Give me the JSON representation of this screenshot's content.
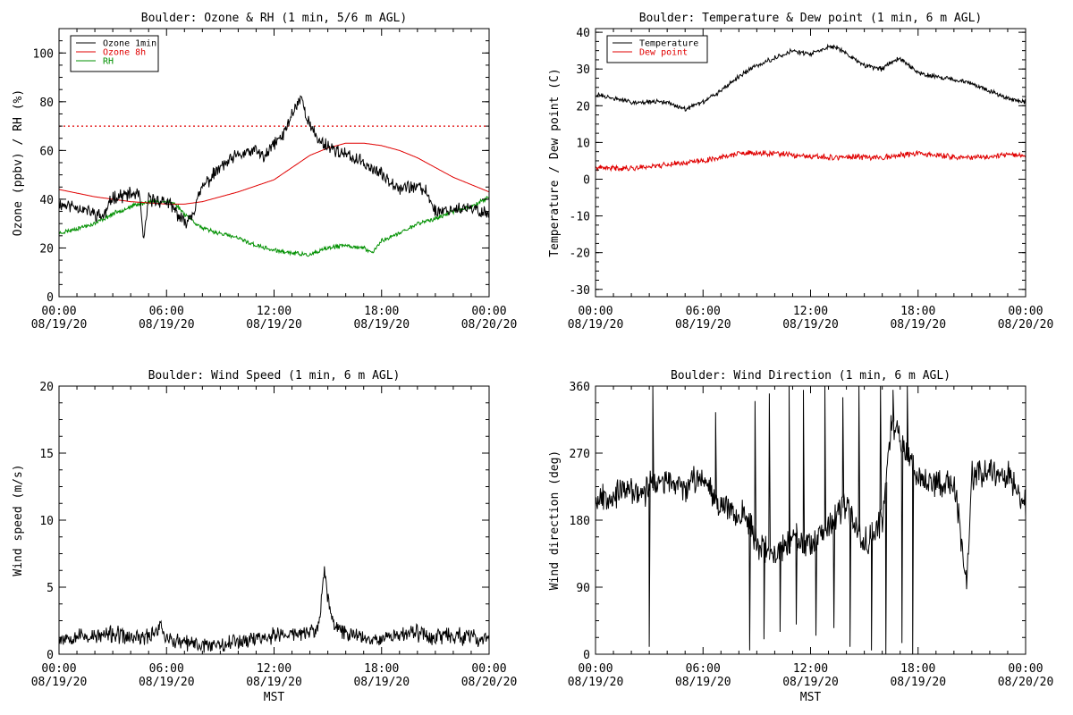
{
  "chart_data": [
    {
      "type": "line",
      "title": "Boulder: Ozone & RH (1 min, 5/6 m AGL)",
      "ylabel": "Ozone (ppbv) / RH (%)",
      "xlabel": "",
      "ylim": [
        0,
        110
      ],
      "yticks": [
        0,
        20,
        40,
        60,
        80,
        100
      ],
      "xlim": [
        0,
        24
      ],
      "xticks": [
        0,
        6,
        12,
        18,
        24
      ],
      "xtick_labels": [
        [
          "00:00",
          "08/19/20"
        ],
        [
          "06:00",
          "08/19/20"
        ],
        [
          "12:00",
          "08/19/20"
        ],
        [
          "18:00",
          "08/19/20"
        ],
        [
          "00:00",
          "08/20/20"
        ]
      ],
      "legend": "top-left",
      "grid": false,
      "reference_lines": [
        {
          "y": 70,
          "color": "#e00000",
          "style": "dotted"
        }
      ],
      "series": [
        {
          "name": "Ozone 1min",
          "color": "#000000",
          "noise": 2.2,
          "noise_seed": 11,
          "x": [
            0,
            1,
            2,
            2.5,
            3,
            4,
            4.5,
            4.7,
            5,
            6,
            6.5,
            7,
            7.5,
            8,
            9,
            10,
            11,
            11.5,
            12,
            12.5,
            13,
            13.5,
            14,
            14.5,
            15,
            16,
            17,
            18,
            19,
            20,
            20.5,
            21,
            22,
            23,
            24
          ],
          "y": [
            38,
            37,
            34,
            33,
            41,
            42,
            42,
            22,
            40,
            39,
            35,
            30,
            35,
            45,
            53,
            58,
            60,
            57,
            63,
            66,
            75,
            82,
            70,
            64,
            62,
            58,
            55,
            50,
            45,
            45,
            43,
            35,
            36,
            36,
            34
          ]
        },
        {
          "name": "Ozone 8h",
          "color": "#e00000",
          "noise": 0,
          "noise_seed": 0,
          "x": [
            0,
            2,
            4,
            6,
            7,
            8,
            10,
            12,
            13,
            14,
            15,
            16,
            17,
            18,
            19,
            20,
            21,
            22,
            23,
            24
          ],
          "y": [
            44,
            41,
            39,
            38,
            38,
            39,
            43,
            48,
            53,
            58,
            61,
            63,
            63,
            62,
            60,
            57,
            53,
            49,
            46,
            43
          ]
        },
        {
          "name": "RH",
          "color": "#009000",
          "noise": 0.7,
          "noise_seed": 23,
          "x": [
            0,
            1,
            2,
            3,
            4,
            5,
            6,
            6.5,
            7,
            8,
            9,
            10,
            11,
            12,
            13,
            14,
            15,
            16,
            17,
            17.5,
            18,
            19,
            20,
            21,
            22,
            23,
            24
          ],
          "y": [
            26,
            28,
            30,
            34,
            37,
            39,
            39,
            38,
            34,
            28,
            26,
            24,
            21,
            19,
            18,
            17,
            20,
            21,
            20,
            18,
            23,
            26,
            30,
            32,
            35,
            37,
            41
          ]
        }
      ]
    },
    {
      "type": "line",
      "title": "Boulder: Temperature & Dew point (1 min, 6 m AGL)",
      "ylabel": "Temperature / Dew point (C)",
      "xlabel": "",
      "ylim": [
        -32,
        41
      ],
      "yticks": [
        -30,
        -20,
        -10,
        0,
        10,
        20,
        30,
        40
      ],
      "xlim": [
        0,
        24
      ],
      "xticks": [
        0,
        6,
        12,
        18,
        24
      ],
      "xtick_labels": [
        [
          "00:00",
          "08/19/20"
        ],
        [
          "06:00",
          "08/19/20"
        ],
        [
          "12:00",
          "08/19/20"
        ],
        [
          "18:00",
          "08/19/20"
        ],
        [
          "00:00",
          "08/20/20"
        ]
      ],
      "legend": "top-left",
      "grid": false,
      "reference_lines": [],
      "series": [
        {
          "name": "Temperature",
          "color": "#000000",
          "noise": 0.5,
          "noise_seed": 31,
          "x": [
            0,
            1,
            2,
            3,
            4,
            5,
            6,
            7,
            8,
            9,
            10,
            11,
            12,
            13,
            13.5,
            14,
            15,
            16,
            16.5,
            17,
            18,
            19,
            20,
            21,
            22,
            23,
            24
          ],
          "y": [
            23,
            22,
            21,
            21,
            21,
            19,
            21,
            24,
            28,
            31,
            33,
            35,
            34,
            36,
            36,
            34,
            31,
            30,
            32,
            33,
            29,
            28,
            27,
            26,
            24,
            22,
            21
          ]
        },
        {
          "name": "Dew point",
          "color": "#e00000",
          "noise": 0.6,
          "noise_seed": 41,
          "x": [
            0,
            2,
            4,
            6,
            7,
            8,
            10,
            12,
            14,
            16,
            18,
            20,
            22,
            23,
            24
          ],
          "y": [
            3,
            3,
            4,
            5,
            6,
            7,
            7,
            6,
            6,
            6,
            7,
            6,
            6,
            7,
            6
          ]
        }
      ]
    },
    {
      "type": "line",
      "title": "Boulder: Wind Speed (1 min, 6 m AGL)",
      "ylabel": "Wind speed (m/s)",
      "xlabel": "MST",
      "ylim": [
        0,
        20
      ],
      "yticks": [
        0,
        5,
        10,
        15,
        20
      ],
      "xlim": [
        0,
        24
      ],
      "xticks": [
        0,
        6,
        12,
        18,
        24
      ],
      "xtick_labels": [
        [
          "00:00",
          "08/19/20"
        ],
        [
          "06:00",
          "08/19/20"
        ],
        [
          "12:00",
          "08/19/20"
        ],
        [
          "18:00",
          "08/19/20"
        ],
        [
          "00:00",
          "08/20/20"
        ]
      ],
      "legend": "none",
      "grid": false,
      "reference_lines": [],
      "series": [
        {
          "name": "",
          "color": "#000000",
          "noise": 0.5,
          "noise_seed": 53,
          "x": [
            0,
            1,
            2,
            3,
            4,
            5,
            5.7,
            6,
            7,
            8,
            9,
            10,
            11,
            12,
            13,
            14,
            14.5,
            14.8,
            15,
            15.3,
            16,
            17,
            18,
            19,
            20,
            21,
            22,
            23,
            24
          ],
          "y": [
            1.2,
            1.4,
            1.3,
            1.5,
            1.2,
            1.3,
            2.2,
            1.1,
            0.8,
            0.7,
            0.8,
            1.0,
            1.2,
            1.4,
            1.5,
            1.6,
            2.0,
            6.5,
            4.0,
            2.2,
            1.6,
            1.3,
            1.2,
            1.5,
            1.6,
            1.3,
            1.4,
            1.2,
            1.1
          ]
        }
      ]
    },
    {
      "type": "line",
      "title": "Boulder: Wind Direction (1 min, 6 m AGL)",
      "ylabel": "Wind direction (deg)",
      "xlabel": "MST",
      "ylim": [
        0,
        360
      ],
      "yticks": [
        0,
        90,
        180,
        270,
        360
      ],
      "xlim": [
        0,
        24
      ],
      "xticks": [
        0,
        6,
        12,
        18,
        24
      ],
      "xtick_labels": [
        [
          "00:00",
          "08/19/20"
        ],
        [
          "06:00",
          "08/19/20"
        ],
        [
          "12:00",
          "08/19/20"
        ],
        [
          "18:00",
          "08/19/20"
        ],
        [
          "00:00",
          "08/20/20"
        ]
      ],
      "legend": "none",
      "grid": false,
      "reference_lines": [],
      "series": [
        {
          "name": "",
          "color": "#000000",
          "noise": 15,
          "noise_seed": 67,
          "x": [
            0,
            1,
            2,
            2.8,
            3,
            4,
            5,
            6,
            7,
            8,
            8.5,
            9,
            10,
            11,
            12,
            13,
            14,
            15,
            16,
            16.5,
            17,
            18,
            19,
            20,
            20.7,
            21,
            22,
            23,
            24
          ],
          "y": [
            210,
            215,
            220,
            215,
            230,
            230,
            225,
            240,
            200,
            190,
            180,
            150,
            130,
            160,
            140,
            170,
            200,
            150,
            180,
            310,
            290,
            240,
            230,
            230,
            100,
            240,
            250,
            240,
            200
          ],
          "spikes": [
            [
              3.0,
              10
            ],
            [
              3.2,
              360
            ],
            [
              6.7,
              325
            ],
            [
              8.6,
              5
            ],
            [
              8.9,
              340
            ],
            [
              9.4,
              20
            ],
            [
              9.7,
              350
            ],
            [
              10.3,
              30
            ],
            [
              10.8,
              360
            ],
            [
              11.2,
              40
            ],
            [
              11.6,
              355
            ],
            [
              12.3,
              25
            ],
            [
              12.8,
              360
            ],
            [
              13.3,
              35
            ],
            [
              13.8,
              345
            ],
            [
              14.2,
              10
            ],
            [
              14.7,
              360
            ],
            [
              15.4,
              5
            ],
            [
              15.9,
              360
            ],
            [
              16.2,
              0
            ],
            [
              16.6,
              355
            ],
            [
              17.1,
              15
            ],
            [
              17.4,
              360
            ],
            [
              17.7,
              0
            ]
          ]
        }
      ]
    }
  ]
}
